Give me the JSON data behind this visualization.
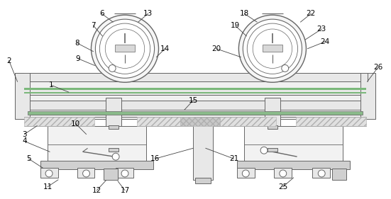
{
  "bg_color": "#ffffff",
  "line_color": "#666666",
  "label_color": "#000000",
  "fig_width": 5.51,
  "fig_height": 2.81,
  "dpi": 100,
  "lw": 0.7,
  "gray_light": "#e8e8e8",
  "gray_mid": "#d0d0d0",
  "gray_dark": "#b0b0b0",
  "green_strip": "#a0c8a0",
  "hatch_fill": "#e0e0e0"
}
